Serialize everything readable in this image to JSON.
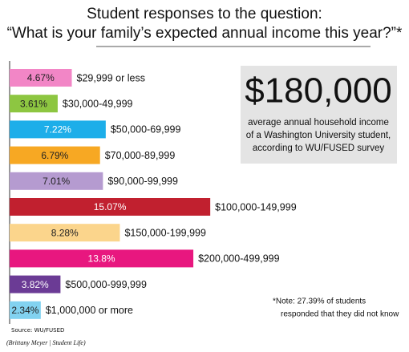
{
  "chart_data": {
    "type": "barh",
    "title": "Student responses to the question:",
    "subtitle": "“What is your family’s expected annual income this year?”*",
    "categories": [
      "$29,999 or less",
      "$30,000-49,999",
      "$50,000-69,999",
      "$70,000-89,999",
      "$90,000-99,999",
      "$100,000-149,999",
      "$150,000-199,999",
      "$200,000-499,999",
      "$500,000-999,999",
      "$1,000,000 or more"
    ],
    "values": [
      4.67,
      3.61,
      7.22,
      6.79,
      7.01,
      15.07,
      8.28,
      13.8,
      3.82,
      2.34
    ],
    "value_labels": [
      "4.67%",
      "3.61%",
      "7.22%",
      "6.79%",
      "7.01%",
      "15.07%",
      "8.28%",
      "13.8%",
      "3.82%",
      "2.34%"
    ],
    "colors": [
      "#f286c6",
      "#8dc641",
      "#1daee9",
      "#f7a823",
      "#b59bd0",
      "#c1202f",
      "#fbd58c",
      "#e8177f",
      "#6b3b95",
      "#82d2f0"
    ],
    "highlight": {
      "figure": "$180,000",
      "lines": [
        "average annual household income",
        "of a Washington University student,",
        "according to WU/FUSED survey"
      ]
    },
    "note": [
      "*Note: 27.39% of students",
      "responded that they did not know"
    ],
    "source": "Source: WU/FUSED",
    "credit": "(Brittany Meyer | Student Life)"
  }
}
